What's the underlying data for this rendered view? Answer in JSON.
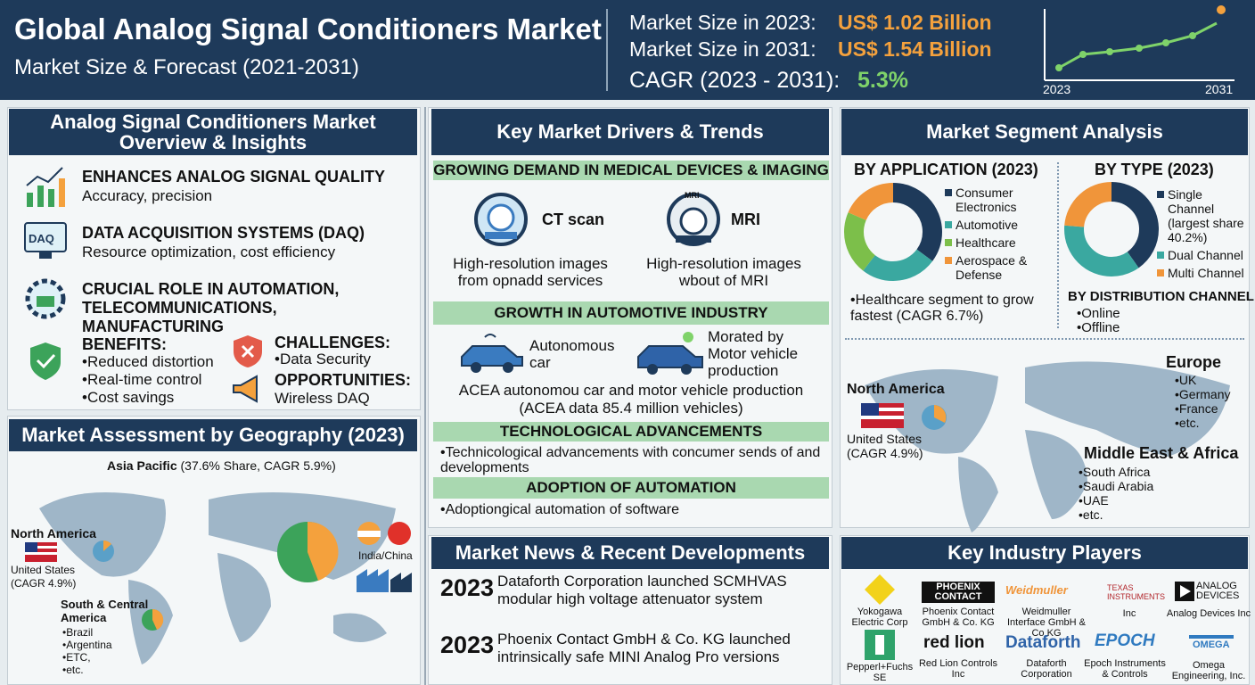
{
  "header": {
    "title": "Global Analog Signal Conditioners Market",
    "subtitle": "Market Size & Forecast (2021-2031)",
    "stats": [
      {
        "label": "Market Size in 2023:",
        "value": "US$ 1.02 Billion"
      },
      {
        "label": "Market Size in 2031:",
        "value": "US$ 1.54 Billion"
      },
      {
        "label": "CAGR (2023 - 2031):",
        "value": "5.3%"
      }
    ],
    "chart_start": "2023",
    "chart_end": "2031"
  },
  "overview": {
    "title": "Analog Signal Conditioners Market Overview & Insights",
    "items": [
      {
        "heading": "ENHANCES ANALOG SIGNAL QUALITY",
        "text": "Accuracy, precision"
      },
      {
        "heading": "DATA ACQUISITION SYSTEMS (DAQ)",
        "text": "Resource optimization, cost efficiency",
        "icon": "DAQ"
      },
      {
        "heading": "CRUCIAL ROLE IN AUTOMATION, TELECOMMUNICATIONS, MANUFACTURING"
      }
    ],
    "benefits": {
      "heading": "BENEFITS:",
      "items": [
        "Reduced distortion",
        "Real-time control",
        "Cost savings"
      ]
    },
    "challenges": {
      "heading": "CHALLENGES:",
      "items": [
        "Data Security"
      ]
    },
    "opportunities": {
      "heading": "OPPORTUNITIES:",
      "text": "Wireless DAQ"
    }
  },
  "geography": {
    "title": "Market Assessment by Geography (2023)",
    "asia": {
      "name": "Asia Pacific",
      "detail": "(37.6% Share, CAGR 5.9%)"
    },
    "north_america": {
      "name": "North America",
      "country": "United States",
      "detail": "(CAGR 4.9%)"
    },
    "india_china": "India/China",
    "south_america": {
      "name": "South & Central America",
      "items": [
        "Brazil",
        "Argentina",
        "ETC,",
        "etc."
      ]
    }
  },
  "drivers": {
    "title": "Key Market Drivers & Trends",
    "sections": [
      {
        "heading": "GROWING DEMAND IN MEDICAL DEVICES & IMAGING",
        "items": [
          {
            "label": "CT scan",
            "text": "High-resolution images from opnadd services"
          },
          {
            "label": "MRI",
            "icon": "MRI",
            "text": "High-resolution images wbout of MRI"
          }
        ]
      },
      {
        "heading": "GROWTH IN AUTOMOTIVE INDUSTRY",
        "items": [
          {
            "label": "Autonomous car"
          },
          {
            "label": "Morated by Motor vehicle production"
          }
        ],
        "text": "ACEA autonomou car and motor vehicle production (ACEA data 85.4 million vehicles)"
      },
      {
        "heading": "TECHNOLOGICAL ADVANCEMENTS",
        "text": "Technicological advancements with concumer sends of and developments"
      },
      {
        "heading": "ADOPTION OF AUTOMATION",
        "text": "Adoptiongical automation of software"
      }
    ]
  },
  "segments": {
    "title": "Market Segment Analysis",
    "application": {
      "heading": "BY APPLICATION (2023)",
      "legend": [
        "Consumer Electronics",
        "Automotive",
        "Healthcare",
        "Aerospace & Defense"
      ],
      "note": "Healthcare segment to grow fastest (CAGR 6.7%)"
    },
    "type": {
      "heading": "BY TYPE (2023)",
      "legend": [
        "Single Channel (largest share 40.2%)",
        "Dual Channel",
        "Multi Channel"
      ]
    },
    "distribution": {
      "heading": "BY DISTRIBUTION CHANNEL",
      "items": [
        "Online",
        "Offline"
      ]
    },
    "map": {
      "north_america": {
        "name": "North America",
        "country": "United States",
        "detail": "(CAGR 4.9%)"
      },
      "europe": {
        "name": "Europe",
        "items": [
          "UK",
          "Germany",
          "France",
          "etc."
        ]
      },
      "mea": {
        "name": "Middle East & Africa",
        "items": [
          "South Africa",
          "Saudi Arabia",
          "UAE",
          "etc."
        ]
      }
    }
  },
  "news": {
    "title": "Market News & Recent Developments",
    "items": [
      {
        "year": "2023",
        "text": "Dataforth Corporation launched SCMHVAS modular high voltage attenuator system"
      },
      {
        "year": "2023",
        "text": "Phoenix Contact GmbH & Co. KG launched intrinsically safe MINI Analog Pro versions"
      }
    ]
  },
  "players": {
    "title": "Key Industry Players",
    "items": [
      {
        "name": "Yokogawa Electric Corp"
      },
      {
        "logo": "PHOENIX CONTACT",
        "name": "Phoenix Contact GmbH & Co. KG"
      },
      {
        "logo": "Weidmuller",
        "name": "Weidmuller Interface GmbH & Co KG"
      },
      {
        "logo": "TEXAS INSTRUMENTS",
        "name": "Inc"
      },
      {
        "logo": "ANALOG DEVICES",
        "name": "Analog Devices Inc"
      },
      {
        "name": "Pepperl+Fuchs SE"
      },
      {
        "logo": "red lion",
        "name": "Red Lion Controls Inc"
      },
      {
        "logo": "Dataforth",
        "name": "Dataforth Corporation"
      },
      {
        "logo": "EPOCH",
        "name": "Epoch Instruments & Controls"
      },
      {
        "logo": "OMEGA",
        "name": "Omega Engineering, Inc."
      }
    ]
  }
}
